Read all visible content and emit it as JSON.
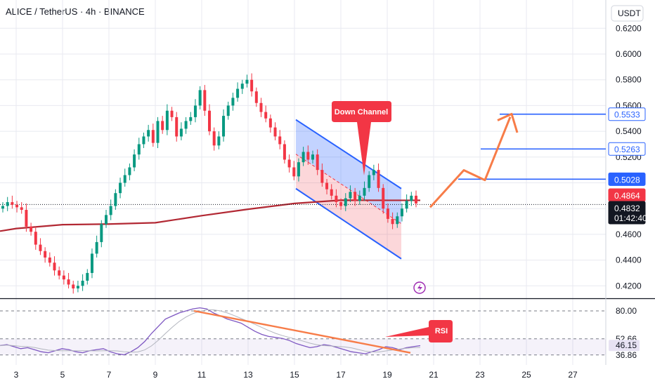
{
  "header": {
    "title": "ALICE / TetherUS · 4h · BINANCE"
  },
  "price_axis": {
    "currency_label": "USDT",
    "tick_labels": [
      "0.6200",
      "0.6000",
      "0.5800",
      "0.5600",
      "0.5400",
      "0.5200",
      "0.4600",
      "0.4400",
      "0.4200"
    ]
  },
  "price_tags": [
    {
      "value": "0.5533",
      "style": "outline"
    },
    {
      "value": "0.5263",
      "style": "outline"
    },
    {
      "value": "0.5028",
      "style": "solid-blue"
    },
    {
      "value": "0.4864",
      "style": "red"
    },
    {
      "value": "0.4832",
      "style": "dark"
    }
  ],
  "countdown": "01:42:40",
  "rsi_axis": {
    "labels": [
      "80.00",
      "52.66",
      "46.15",
      "36.86"
    ]
  },
  "time_axis": {
    "labels": [
      "3",
      "5",
      "7",
      "9",
      "11",
      "13",
      "15",
      "17",
      "19",
      "21",
      "23",
      "25",
      "27"
    ]
  },
  "annotations": {
    "channel_label": "Down Channel",
    "rsi_label": "RSI"
  },
  "colors": {
    "up": "#089981",
    "down": "#f23645",
    "channel": "#2962ff",
    "ma": "#b22833",
    "arrow": "#f77c48",
    "rsi": "#7e57c2"
  },
  "chart_data": {
    "type": "candlestick",
    "title": "ALICE / TetherUS · 4h · BINANCE",
    "y_range": [
      0.414,
      0.628
    ],
    "x_ticks": [
      "3",
      "5",
      "7",
      "9",
      "11",
      "13",
      "15",
      "17",
      "19",
      "21",
      "23",
      "25",
      "27"
    ],
    "last_price": 0.4832,
    "moving_average_last": 0.4864,
    "projection_levels": [
      0.5028,
      0.5263,
      0.5533
    ],
    "candle_closes": [
      0.482,
      0.485,
      0.483,
      0.481,
      0.479,
      0.466,
      0.462,
      0.452,
      0.447,
      0.442,
      0.438,
      0.432,
      0.428,
      0.425,
      0.421,
      0.418,
      0.42,
      0.424,
      0.43,
      0.445,
      0.454,
      0.468,
      0.475,
      0.482,
      0.492,
      0.5,
      0.506,
      0.512,
      0.522,
      0.53,
      0.536,
      0.541,
      0.531,
      0.548,
      0.541,
      0.556,
      0.551,
      0.536,
      0.542,
      0.548,
      0.551,
      0.56,
      0.572,
      0.556,
      0.54,
      0.529,
      0.536,
      0.552,
      0.56,
      0.566,
      0.573,
      0.577,
      0.58,
      0.571,
      0.562,
      0.555,
      0.55,
      0.543,
      0.536,
      0.53,
      0.518,
      0.512,
      0.505,
      0.516,
      0.524,
      0.518,
      0.522,
      0.51,
      0.5,
      0.495,
      0.49,
      0.485,
      0.482,
      0.488,
      0.493,
      0.486,
      0.49,
      0.496,
      0.506,
      0.51,
      0.496,
      0.48,
      0.472,
      0.468,
      0.474,
      0.48,
      0.486,
      0.49,
      0.484
    ],
    "moving_average": {
      "x": [
        "3",
        "5",
        "7",
        "9",
        "11",
        "13",
        "15",
        "17",
        "19"
      ],
      "y": [
        0.4645,
        0.4675,
        0.468,
        0.469,
        0.4745,
        0.4795,
        0.484,
        0.4865,
        0.4864
      ]
    },
    "channel": {
      "upper": {
        "x": [
          "15",
          "19"
        ],
        "y": [
          0.549,
          0.4955
        ]
      },
      "lower": {
        "x": [
          "15",
          "19"
        ],
        "y": [
          0.4955,
          0.441
        ]
      }
    },
    "rsi": {
      "range": [
        30,
        90
      ],
      "levels": [
        80.0,
        52.66,
        46.15,
        36.86
      ],
      "values": [
        46,
        47,
        45,
        43,
        44,
        42,
        40,
        39,
        41,
        43,
        42,
        40,
        39,
        41,
        42,
        43,
        40,
        38,
        37,
        40,
        44,
        50,
        58,
        65,
        72,
        75,
        78,
        80,
        82,
        83,
        82,
        78,
        75,
        72,
        70,
        68,
        64,
        60,
        57,
        55,
        54,
        53,
        51,
        48,
        46,
        44,
        45,
        47,
        46,
        44,
        42,
        40,
        39,
        38,
        40,
        42,
        45,
        44,
        42,
        44,
        45,
        46
      ]
    }
  }
}
